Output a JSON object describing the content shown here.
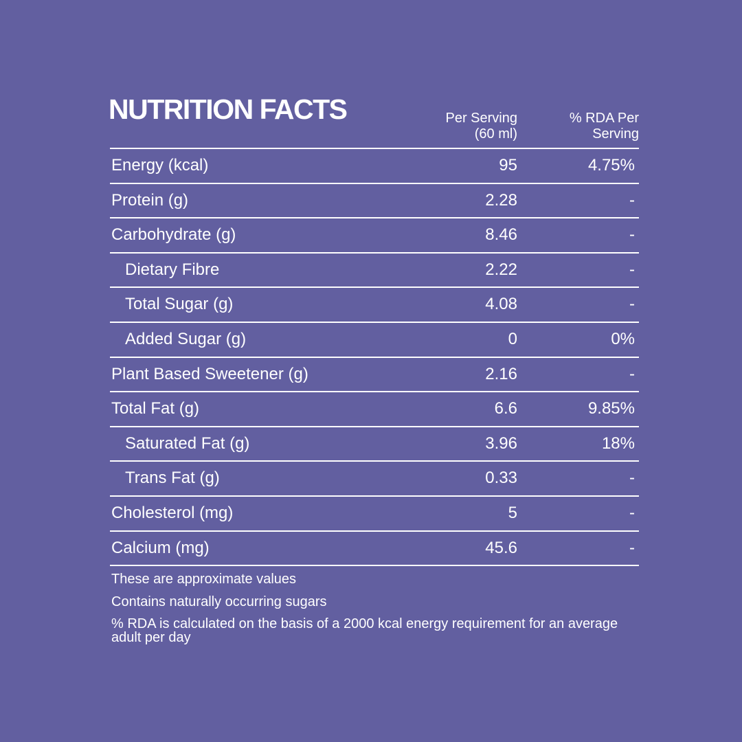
{
  "title": "NUTRITION FACTS",
  "headers": {
    "per_serving": "Per Serving",
    "per_serving_unit": "(60 ml)",
    "rda": "% RDA Per",
    "rda2": "Serving"
  },
  "rows": [
    {
      "label": "Energy (kcal)",
      "value": "95",
      "rda": "4.75%",
      "sub": false
    },
    {
      "label": "Protein (g)",
      "value": "2.28",
      "rda": "-",
      "sub": false
    },
    {
      "label": "Carbohydrate (g)",
      "value": "8.46",
      "rda": "-",
      "sub": false
    },
    {
      "label": "Dietary Fibre",
      "value": "2.22",
      "rda": "-",
      "sub": true
    },
    {
      "label": "Total Sugar (g)",
      "value": "4.08",
      "rda": "-",
      "sub": true
    },
    {
      "label": "Added Sugar (g)",
      "value": "0",
      "rda": "0%",
      "sub": true
    },
    {
      "label": "Plant Based Sweetener (g)",
      "value": "2.16",
      "rda": "-",
      "sub": false
    },
    {
      "label": "Total Fat (g)",
      "value": "6.6",
      "rda": "9.85%",
      "sub": false
    },
    {
      "label": "Saturated Fat (g)",
      "value": "3.96",
      "rda": "18%",
      "sub": true
    },
    {
      "label": "Trans Fat (g)",
      "value": "0.33",
      "rda": "-",
      "sub": true
    },
    {
      "label": "Cholesterol (mg)",
      "value": "5",
      "rda": "-",
      "sub": false
    },
    {
      "label": "Calcium (mg)",
      "value": "45.6",
      "rda": "-",
      "sub": false
    }
  ],
  "notes": [
    "These are approximate values",
    "Contains naturally occurring sugars",
    "%  RDA is calculated on the basis of a 2000 kcal  energy requirement for an average adult per day"
  ]
}
